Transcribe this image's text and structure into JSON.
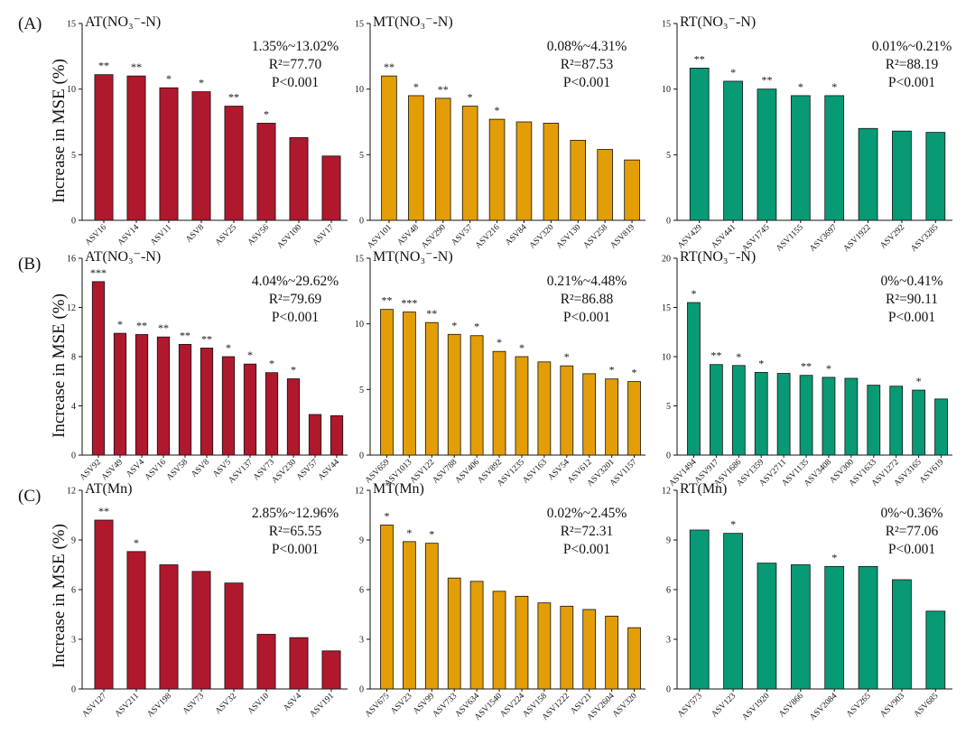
{
  "figure": {
    "ylabel": "Increase in MSE (%)",
    "row_labels": [
      "(A)",
      "(B)",
      "(C)"
    ],
    "colors": {
      "AT": "#b0182e",
      "MT": "#e39d06",
      "RT": "#079a74"
    }
  },
  "chart_data": [
    {
      "type": "bar",
      "group": "AT",
      "title": "AT(NO₃⁻-N)",
      "categories": [
        "ASV16",
        "ASV14",
        "ASV11",
        "ASV8",
        "ASV25",
        "ASV56",
        "ASV100",
        "ASV17"
      ],
      "values": [
        11.1,
        11.0,
        10.1,
        9.8,
        8.7,
        7.4,
        6.3,
        4.9
      ],
      "sig": [
        "**",
        "**",
        "*",
        "*",
        "**",
        "*",
        "",
        ""
      ],
      "ylim": [
        0,
        15
      ],
      "yticks": [
        0,
        5,
        10,
        15
      ],
      "stats": [
        "1.35%~13.02%",
        "R²=77.70",
        "P<0.001"
      ]
    },
    {
      "type": "bar",
      "group": "MT",
      "title": "MT(NO₃⁻-N)",
      "categories": [
        "ASV101",
        "ASV48",
        "ASV290",
        "ASV57",
        "ASV216",
        "ASV84",
        "ASV320",
        "ASV130",
        "ASV258",
        "ASV819"
      ],
      "values": [
        11.0,
        9.5,
        9.3,
        8.7,
        7.7,
        7.5,
        7.4,
        6.1,
        5.4,
        4.6
      ],
      "sig": [
        "**",
        "*",
        "**",
        "*",
        "*",
        "",
        "",
        "",
        "",
        ""
      ],
      "ylim": [
        0,
        15
      ],
      "yticks": [
        0,
        5,
        10,
        15
      ],
      "stats": [
        "0.08%~4.31%",
        "R²=87.53",
        "P<0.001"
      ]
    },
    {
      "type": "bar",
      "group": "RT",
      "title": "RT(NO₃⁻-N)",
      "categories": [
        "ASV429",
        "ASV441",
        "ASV1745",
        "ASV1155",
        "ASV3697",
        "ASV1922",
        "ASV292",
        "ASV3285"
      ],
      "values": [
        11.6,
        10.6,
        10.0,
        9.5,
        9.5,
        7.0,
        6.8,
        6.7
      ],
      "sig": [
        "**",
        "*",
        "**",
        "*",
        "*",
        "",
        "",
        ""
      ],
      "ylim": [
        0,
        15
      ],
      "yticks": [
        0,
        5,
        10,
        15
      ],
      "stats": [
        "0.01%~0.21%",
        "R²=88.19",
        "P<0.001"
      ]
    },
    {
      "type": "bar",
      "group": "AT",
      "title": "AT(NO₃⁻-N)",
      "categories": [
        "ASV92",
        "ASV49",
        "ASV4",
        "ASV16",
        "ASV58",
        "ASV8",
        "ASV5",
        "ASV137",
        "ASV73",
        "ASV230",
        "ASV57",
        "ASV44"
      ],
      "values": [
        14.1,
        9.9,
        9.8,
        9.6,
        9.0,
        8.7,
        8.0,
        7.4,
        6.7,
        6.2,
        3.3,
        3.2
      ],
      "sig": [
        "***",
        "*",
        "**",
        "**",
        "**",
        "**",
        "*",
        "*",
        "*",
        "*",
        "",
        ""
      ],
      "ylim": [
        0,
        16
      ],
      "yticks": [
        0,
        4,
        8,
        12,
        16
      ],
      "stats": [
        "4.04%~29.62%",
        "R²=79.69",
        "P<0.001"
      ]
    },
    {
      "type": "bar",
      "group": "MT",
      "title": "MT(NO₃⁻-N)",
      "categories": [
        "ASV659",
        "ASV1013",
        "ASV122",
        "ASV788",
        "ASV406",
        "ASV892",
        "ASV1235",
        "ASV163",
        "ASV54",
        "ASV612",
        "ASV3201",
        "ASV1157"
      ],
      "values": [
        11.1,
        10.9,
        10.1,
        9.2,
        9.1,
        7.9,
        7.5,
        7.1,
        6.8,
        6.2,
        5.8,
        5.6
      ],
      "sig": [
        "**",
        "***",
        "**",
        "*",
        "*",
        "*",
        "*",
        "",
        "*",
        "",
        "*",
        "*"
      ],
      "ylim": [
        0,
        15
      ],
      "yticks": [
        0,
        5,
        10,
        15
      ],
      "stats": [
        "0.21%~4.48%",
        "R²=86.88",
        "P<0.001"
      ]
    },
    {
      "type": "bar",
      "group": "RT",
      "title": "RT(NO₃⁻-N)",
      "categories": [
        "ASV1494",
        "ASV917",
        "ASV1686",
        "ASV1359",
        "ASV2711",
        "ASV1135",
        "ASV3408",
        "ASV300",
        "ASV1633",
        "ASV1272",
        "ASV3165",
        "ASV619"
      ],
      "values": [
        15.5,
        9.2,
        9.1,
        8.4,
        8.3,
        8.1,
        7.9,
        7.8,
        7.1,
        7.0,
        6.6,
        5.7
      ],
      "sig": [
        "*",
        "**",
        "*",
        "*",
        "",
        "**",
        "*",
        "",
        "",
        "",
        "*",
        ""
      ],
      "ylim": [
        0,
        20
      ],
      "yticks": [
        0,
        5,
        10,
        15,
        20
      ],
      "stats": [
        "0%~0.41%",
        "R²=90.11",
        "P<0.001"
      ]
    },
    {
      "type": "bar",
      "group": "AT",
      "title": "AT(Mn)",
      "categories": [
        "ASV127",
        "ASV211",
        "ASV198",
        "ASV73",
        "ASV32",
        "ASV10",
        "ASV4",
        "ASV191"
      ],
      "values": [
        10.2,
        8.3,
        7.5,
        7.1,
        6.4,
        3.3,
        3.1,
        2.3
      ],
      "sig": [
        "**",
        "*",
        "",
        "",
        "",
        "",
        "",
        ""
      ],
      "ylim": [
        0,
        12
      ],
      "yticks": [
        0,
        3,
        6,
        9,
        12
      ],
      "stats": [
        "2.85%~12.96%",
        "R²=65.55",
        "P<0.001"
      ]
    },
    {
      "type": "bar",
      "group": "MT",
      "title": "MT(Mn)",
      "categories": [
        "ASV675",
        "ASV23",
        "ASV99",
        "ASV733",
        "ASV634",
        "ASV1540",
        "ASV224",
        "ASV158",
        "ASV1222",
        "ASV21",
        "ASV2604",
        "ASV320"
      ],
      "values": [
        9.9,
        8.9,
        8.8,
        6.7,
        6.5,
        5.9,
        5.6,
        5.2,
        5.0,
        4.8,
        4.4,
        3.7
      ],
      "sig": [
        "*",
        "*",
        "*",
        "",
        "",
        "",
        "",
        "",
        "",
        "",
        "",
        ""
      ],
      "ylim": [
        0,
        12
      ],
      "yticks": [
        0,
        3,
        6,
        9,
        12
      ],
      "stats": [
        "0.02%~2.45%",
        "R²=72.31",
        "P<0.001"
      ]
    },
    {
      "type": "bar",
      "group": "RT",
      "title": "RT(Mn)",
      "categories": [
        "ASV573",
        "ASV123",
        "ASV1920",
        "ASV866",
        "ASV2084",
        "ASV265",
        "ASV903",
        "ASV685"
      ],
      "values": [
        9.6,
        9.4,
        7.6,
        7.5,
        7.4,
        7.4,
        6.6,
        4.7
      ],
      "sig": [
        "",
        "*",
        "",
        "",
        "*",
        "",
        "",
        ""
      ],
      "ylim": [
        0,
        12
      ],
      "yticks": [
        0,
        3,
        6,
        9,
        12
      ],
      "stats": [
        "0%~0.36%",
        "R²=77.06",
        "P<0.001"
      ]
    }
  ]
}
